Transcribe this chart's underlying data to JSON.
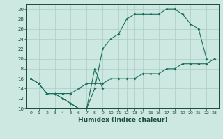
{
  "xlabel": "Humidex (Indice chaleur)",
  "bg_color": "#cce8e0",
  "grid_color": "#aaccc4",
  "line_color": "#1a6e5e",
  "xlim": [
    -0.5,
    23.5
  ],
  "ylim": [
    10,
    31
  ],
  "xticks": [
    0,
    1,
    2,
    3,
    4,
    5,
    6,
    7,
    8,
    9,
    10,
    11,
    12,
    13,
    14,
    15,
    16,
    17,
    18,
    19,
    20,
    21,
    22,
    23
  ],
  "yticks": [
    10,
    12,
    14,
    16,
    18,
    20,
    22,
    24,
    26,
    28,
    30
  ],
  "line1_x": [
    0,
    1,
    2,
    3,
    4,
    5,
    6,
    7,
    8,
    9,
    10,
    11,
    12,
    13,
    14,
    15,
    16,
    17,
    18,
    19,
    20,
    21,
    22
  ],
  "line1_y": [
    16,
    15,
    13,
    13,
    12,
    11,
    10,
    10,
    14,
    22,
    24,
    25,
    28,
    29,
    29,
    29,
    29,
    30,
    30,
    29,
    27,
    26,
    20
  ],
  "line2_x": [
    0,
    1,
    2,
    3,
    4,
    5,
    6,
    7,
    8,
    9
  ],
  "line2_y": [
    16,
    15,
    13,
    13,
    12,
    11,
    10,
    10,
    18,
    14
  ],
  "line3_x": [
    0,
    1,
    2,
    3,
    4,
    5,
    6,
    7,
    8,
    9,
    10,
    11,
    12,
    13,
    14,
    15,
    16,
    17,
    18,
    19,
    20,
    21,
    22,
    23
  ],
  "line3_y": [
    16,
    15,
    13,
    13,
    13,
    13,
    14,
    15,
    15,
    15,
    16,
    16,
    16,
    16,
    17,
    17,
    17,
    18,
    18,
    19,
    19,
    19,
    19,
    20
  ]
}
